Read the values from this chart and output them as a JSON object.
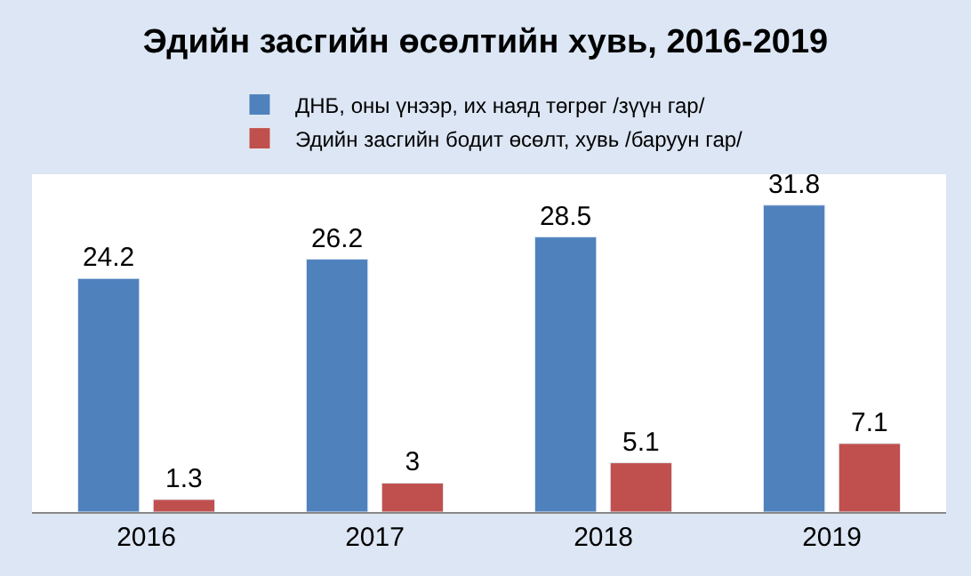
{
  "chart_data": {
    "type": "bar",
    "title": "Эдийн засгийн өсөлтийн хувь, 2016-2019",
    "categories": [
      "2016",
      "2017",
      "2018",
      "2019"
    ],
    "series": [
      {
        "name": "ДНБ, оны үнээр, их наяд төгрөг /зүүн гар/",
        "color": "#4f81bd",
        "values": [
          24.2,
          26.2,
          28.5,
          31.8
        ]
      },
      {
        "name": "Эдийн засгийн бодит өсөлт, хувь /баруун гар/",
        "color": "#c0504d",
        "values": [
          1.3,
          3,
          5.1,
          7.1
        ]
      }
    ],
    "ylim": [
      0,
      35
    ],
    "tick_labels": "x",
    "data_labels": true,
    "legend": "top"
  }
}
